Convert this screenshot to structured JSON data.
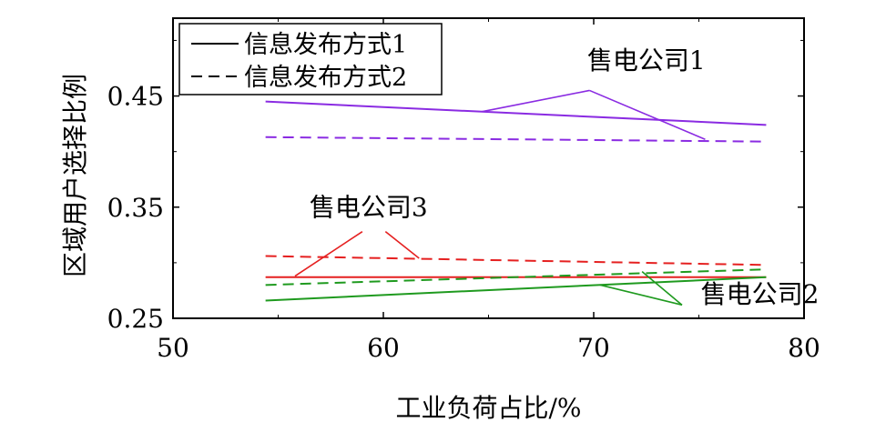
{
  "chart_data": {
    "type": "line",
    "xlabel": "工业负荷占比/%",
    "ylabel": "区域用户选择比例",
    "xlim": [
      50,
      80
    ],
    "ylim": [
      0.25,
      0.52
    ],
    "xticks": [
      50,
      60,
      70,
      80
    ],
    "yticks": [
      0.25,
      0.35,
      0.45
    ],
    "grid": false,
    "legend_position": "top-left",
    "legend": [
      {
        "label": "信息发布方式1",
        "dash": "solid"
      },
      {
        "label": "信息发布方式2",
        "dash": "dashed"
      }
    ],
    "series": [
      {
        "company": "售电公司1",
        "mode": "信息发布方式1",
        "color": "#8a2be2",
        "dash": "solid",
        "points": [
          [
            54.4,
            0.445
          ],
          [
            78.2,
            0.424
          ]
        ]
      },
      {
        "company": "售电公司1",
        "mode": "信息发布方式2",
        "color": "#8a2be2",
        "dash": "dashed",
        "points": [
          [
            54.4,
            0.413
          ],
          [
            78.2,
            0.409
          ]
        ]
      },
      {
        "company": "售电公司3",
        "mode": "信息发布方式1",
        "color": "#e52020",
        "dash": "solid",
        "points": [
          [
            54.4,
            0.287
          ],
          [
            78.2,
            0.287
          ]
        ]
      },
      {
        "company": "售电公司3",
        "mode": "信息发布方式2",
        "color": "#e52020",
        "dash": "dashed",
        "points": [
          [
            54.4,
            0.306
          ],
          [
            78.2,
            0.298
          ]
        ]
      },
      {
        "company": "售电公司2",
        "mode": "信息发布方式1",
        "color": "#1f9a1f",
        "dash": "solid",
        "points": [
          [
            54.4,
            0.266
          ],
          [
            78.2,
            0.287
          ]
        ]
      },
      {
        "company": "售电公司2",
        "mode": "信息发布方式2",
        "color": "#1f9a1f",
        "dash": "dashed",
        "points": [
          [
            54.4,
            0.28
          ],
          [
            78.2,
            0.294
          ]
        ]
      }
    ],
    "annotations": [
      {
        "text": "售电公司1",
        "color": "#8a2be2",
        "at": [
          72.5,
          0.474
        ],
        "pointers": [
          [
            [
              69.8,
              0.455
            ],
            [
              64.7,
              0.436
            ]
          ],
          [
            [
              69.8,
              0.455
            ],
            [
              75.3,
              0.411
            ]
          ]
        ]
      },
      {
        "text": "售电公司3",
        "color": "#e52020",
        "at": [
          59.3,
          0.342
        ],
        "pointers": [
          [
            [
              59.0,
              0.328
            ],
            [
              55.8,
              0.288
            ]
          ],
          [
            [
              60.1,
              0.328
            ],
            [
              61.7,
              0.304
            ]
          ]
        ]
      },
      {
        "text": "售电公司2",
        "color": "#1f9a1f",
        "at": [
          77.9,
          0.264
        ],
        "pointers": [
          [
            [
              74.2,
              0.262
            ],
            [
              70.3,
              0.28
            ]
          ],
          [
            [
              74.2,
              0.262
            ],
            [
              72.3,
              0.292
            ]
          ]
        ]
      }
    ]
  }
}
